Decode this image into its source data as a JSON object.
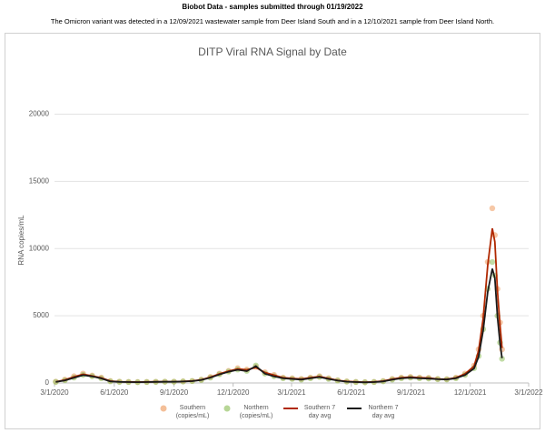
{
  "header": {
    "title": "Biobot Data - samples submitted through 01/19/2022",
    "note": "The Omicron variant was detected in a 12/09/2021 wastewater sample from Deer Island South and in a 12/10/2021 sample from Deer Island North."
  },
  "chart_data": {
    "type": "scatter",
    "title": "DITP Viral RNA Signal by Date",
    "y_label": "RNA copies/mL",
    "x": [
      "2020-03-03",
      "2020-03-17",
      "2020-03-31",
      "2020-04-14",
      "2020-04-28",
      "2020-05-12",
      "2020-05-26",
      "2020-06-09",
      "2020-06-23",
      "2020-07-07",
      "2020-07-21",
      "2020-08-04",
      "2020-08-18",
      "2020-09-01",
      "2020-09-15",
      "2020-09-29",
      "2020-10-13",
      "2020-10-27",
      "2020-11-10",
      "2020-11-24",
      "2020-12-08",
      "2020-12-22",
      "2021-01-05",
      "2021-01-19",
      "2021-02-02",
      "2021-02-16",
      "2021-03-02",
      "2021-03-16",
      "2021-03-30",
      "2021-04-13",
      "2021-04-27",
      "2021-05-11",
      "2021-05-25",
      "2021-06-08",
      "2021-06-22",
      "2021-07-06",
      "2021-07-20",
      "2021-08-03",
      "2021-08-17",
      "2021-08-31",
      "2021-09-14",
      "2021-09-28",
      "2021-10-12",
      "2021-10-26",
      "2021-11-09",
      "2021-11-23",
      "2021-12-07",
      "2021-12-14",
      "2021-12-21",
      "2021-12-28",
      "2022-01-04",
      "2022-01-08",
      "2022-01-12",
      "2022-01-16",
      "2022-01-19"
    ],
    "series": [
      {
        "name": "Southern (copies/mL)",
        "type": "scatter",
        "color": "#f0a46c",
        "values": [
          100,
          250,
          500,
          700,
          550,
          400,
          150,
          100,
          80,
          70,
          80,
          90,
          100,
          100,
          120,
          150,
          250,
          450,
          700,
          900,
          1100,
          1000,
          1200,
          800,
          600,
          400,
          350,
          300,
          400,
          500,
          350,
          200,
          120,
          80,
          60,
          80,
          150,
          300,
          400,
          450,
          400,
          380,
          300,
          280,
          400,
          700,
          1300,
          2500,
          5000,
          9000,
          13000,
          11000,
          7000,
          4500,
          2500
        ]
      },
      {
        "name": "Northern (copies/mL)",
        "type": "scatter",
        "color": "#98c46a",
        "values": [
          80,
          200,
          400,
          600,
          500,
          350,
          120,
          80,
          70,
          60,
          70,
          80,
          90,
          90,
          110,
          140,
          220,
          400,
          650,
          850,
          1000,
          900,
          1300,
          700,
          500,
          350,
          300,
          250,
          350,
          450,
          300,
          180,
          100,
          70,
          50,
          70,
          120,
          250,
          350,
          400,
          350,
          330,
          280,
          260,
          350,
          600,
          1100,
          2000,
          4000,
          7000,
          9000,
          8000,
          5000,
          3000,
          1800
        ]
      },
      {
        "name": "Southern 7 day avg",
        "type": "line",
        "color": "#b02800",
        "values": [
          90,
          230,
          460,
          650,
          530,
          380,
          140,
          95,
          78,
          68,
          78,
          88,
          98,
          98,
          118,
          148,
          240,
          430,
          680,
          880,
          1050,
          980,
          1150,
          780,
          580,
          390,
          340,
          300,
          390,
          480,
          340,
          195,
          118,
          78,
          60,
          78,
          145,
          290,
          390,
          440,
          395,
          375,
          300,
          280,
          390,
          680,
          1250,
          2400,
          4800,
          8800,
          11500,
          10500,
          6800,
          4300,
          2600
        ]
      },
      {
        "name": "Northern 7 day avg",
        "type": "line",
        "color": "#1a1a1a",
        "values": [
          75,
          190,
          390,
          580,
          490,
          340,
          118,
          78,
          68,
          58,
          68,
          78,
          88,
          88,
          108,
          138,
          215,
          390,
          630,
          830,
          980,
          880,
          1250,
          690,
          490,
          345,
          295,
          248,
          345,
          440,
          295,
          178,
          98,
          68,
          50,
          68,
          118,
          245,
          345,
          395,
          345,
          325,
          278,
          258,
          345,
          590,
          1080,
          1950,
          3900,
          6800,
          8500,
          7800,
          4900,
          2950,
          1850
        ]
      }
    ],
    "xlim": [
      "2020-03-01",
      "2022-03-01"
    ],
    "xticks": [
      {
        "value": "2020-03-01",
        "label": "3/1/2020"
      },
      {
        "value": "2020-06-01",
        "label": "6/1/2020"
      },
      {
        "value": "2020-09-01",
        "label": "9/1/2020"
      },
      {
        "value": "2020-12-01",
        "label": "12/1/2020"
      },
      {
        "value": "2021-03-01",
        "label": "3/1/2021"
      },
      {
        "value": "2021-06-01",
        "label": "6/1/2021"
      },
      {
        "value": "2021-09-01",
        "label": "9/1/2021"
      },
      {
        "value": "2021-12-01",
        "label": "12/1/2021"
      },
      {
        "value": "2022-03-01",
        "label": "3/1/2022"
      }
    ],
    "ylim": [
      0,
      22000
    ],
    "yticks": [
      0,
      5000,
      10000,
      15000,
      20000
    ],
    "grid": true
  }
}
